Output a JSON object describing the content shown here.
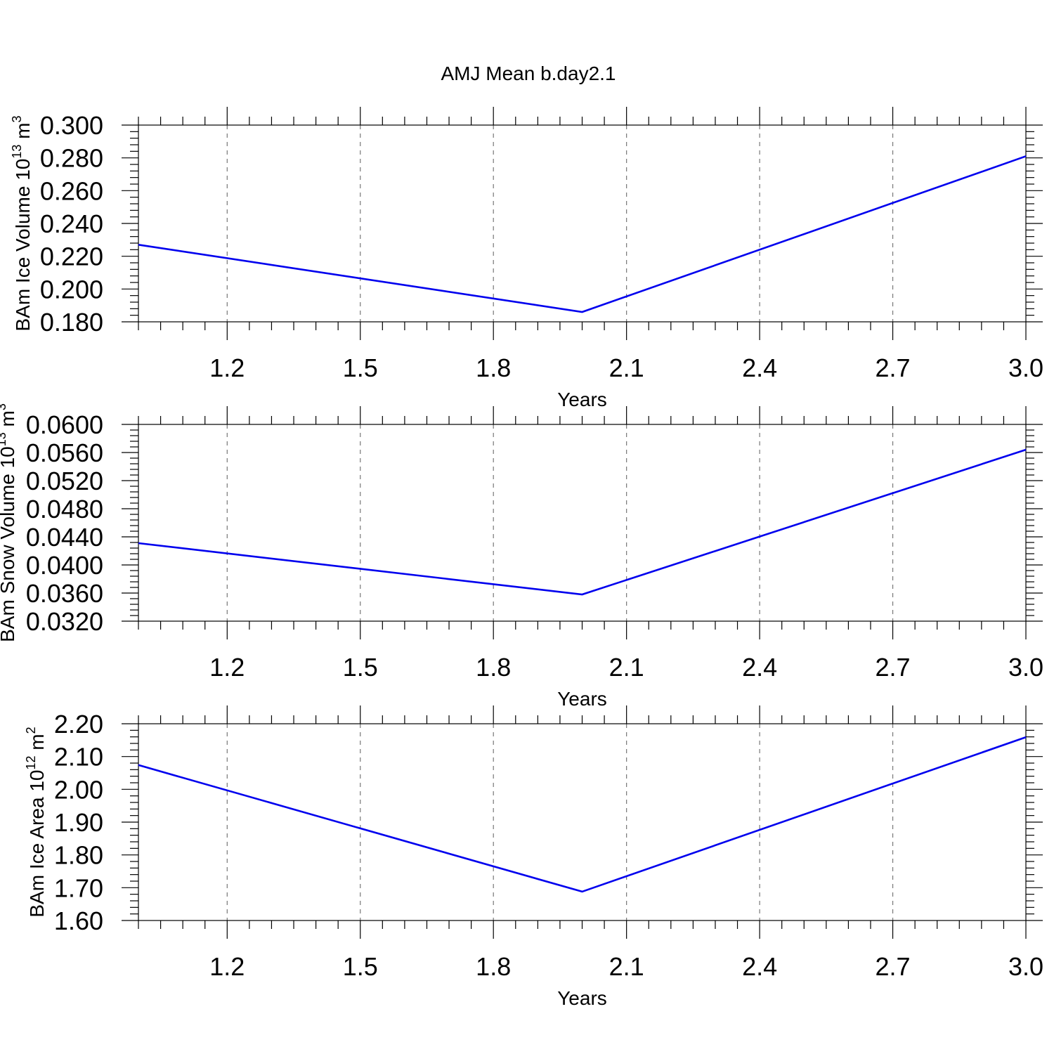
{
  "title": "AMJ Mean b.day2.1",
  "colors": {
    "series": "#0000ee",
    "frame": "#000000",
    "grid": "#777777"
  },
  "chart_data": [
    {
      "type": "line",
      "ylabel": {
        "text": "BAm Ice Volume 10",
        "exp": "13",
        "unit": " m",
        "unit_exp": "3"
      },
      "xlabel": "Years",
      "xlim": [
        1.0,
        3.0
      ],
      "ylim": [
        0.18,
        0.3
      ],
      "xticks": [
        "1.2",
        "1.5",
        "1.8",
        "2.1",
        "2.4",
        "2.7",
        "3.0"
      ],
      "yticks": [
        "0.300",
        "0.280",
        "0.260",
        "0.240",
        "0.220",
        "0.200",
        "0.180"
      ],
      "grid": "x-dashed",
      "series": [
        {
          "x": [
            1.0,
            2.0,
            3.0
          ],
          "values": [
            0.227,
            0.186,
            0.281
          ]
        }
      ]
    },
    {
      "type": "line",
      "ylabel": {
        "text": "BAm Snow Volume 10",
        "exp": "13",
        "unit": " m",
        "unit_exp": "3"
      },
      "xlabel": "Years",
      "xlim": [
        1.0,
        3.0
      ],
      "ylim": [
        0.032,
        0.06
      ],
      "xticks": [
        "1.2",
        "1.5",
        "1.8",
        "2.1",
        "2.4",
        "2.7",
        "3.0"
      ],
      "yticks": [
        "0.0600",
        "0.0560",
        "0.0520",
        "0.0480",
        "0.0440",
        "0.0400",
        "0.0360",
        "0.0320"
      ],
      "grid": "x-dashed",
      "series": [
        {
          "x": [
            1.0,
            2.0,
            3.0
          ],
          "values": [
            0.0431,
            0.0358,
            0.0564
          ]
        }
      ]
    },
    {
      "type": "line",
      "ylabel": {
        "text": "BAm Ice Area 10",
        "exp": "12",
        "unit": " m",
        "unit_exp": "2"
      },
      "xlabel": "Years",
      "xlim": [
        1.0,
        3.0
      ],
      "ylim": [
        1.6,
        2.2
      ],
      "xticks": [
        "1.2",
        "1.5",
        "1.8",
        "2.1",
        "2.4",
        "2.7",
        "3.0"
      ],
      "yticks": [
        "2.20",
        "2.10",
        "2.00",
        "1.90",
        "1.80",
        "1.70",
        "1.60"
      ],
      "grid": "x-dashed",
      "series": [
        {
          "x": [
            1.0,
            2.0,
            3.0
          ],
          "values": [
            2.074,
            1.688,
            2.159
          ]
        }
      ]
    }
  ]
}
